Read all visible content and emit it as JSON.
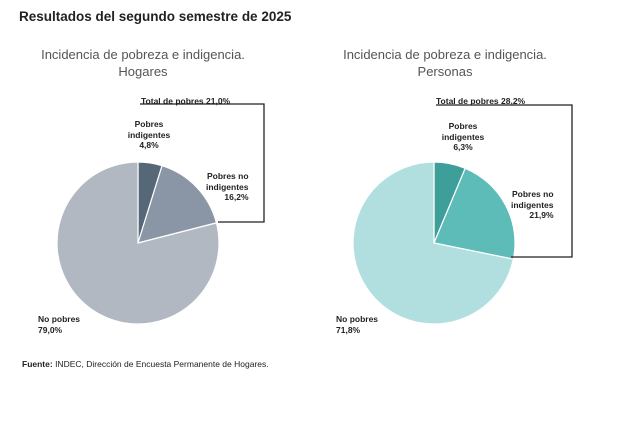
{
  "page_title": "Resultados del segundo semestre de 2025",
  "source": {
    "label": "Fuente:",
    "text": " INDEC, Dirección de Encuesta Permanente de Hogares."
  },
  "chart_data": [
    {
      "type": "pie",
      "title": "Incidencia de pobreza e indigencia.",
      "subtitle": "Hogares",
      "bracket_label": "Total de pobres 21,0%",
      "slices": [
        {
          "name_lines": [
            "Pobres",
            "indigentes"
          ],
          "value_label": "4,8%",
          "value": 4.8,
          "color": "#566778"
        },
        {
          "name_lines": [
            "Pobres no",
            "indigentes"
          ],
          "value_label": "16,2%",
          "value": 16.2,
          "color": "#8a96a5"
        },
        {
          "name_lines": [
            "No pobres"
          ],
          "value_label": "79,0%",
          "value": 79.0,
          "color": "#b1b8c1"
        }
      ]
    },
    {
      "type": "pie",
      "title": "Incidencia de pobreza e indigencia.",
      "subtitle": "Personas",
      "bracket_label": "Total de pobres 28,2%",
      "slices": [
        {
          "name_lines": [
            "Pobres",
            "indigentes"
          ],
          "value_label": "6,3%",
          "value": 6.3,
          "color": "#3d9e9a"
        },
        {
          "name_lines": [
            "Pobres no",
            "indigentes"
          ],
          "value_label": "21,9%",
          "value": 21.9,
          "color": "#5dbcb8"
        },
        {
          "name_lines": [
            "No pobres"
          ],
          "value_label": "71,8%",
          "value": 71.8,
          "color": "#b1dfe0"
        }
      ]
    }
  ]
}
